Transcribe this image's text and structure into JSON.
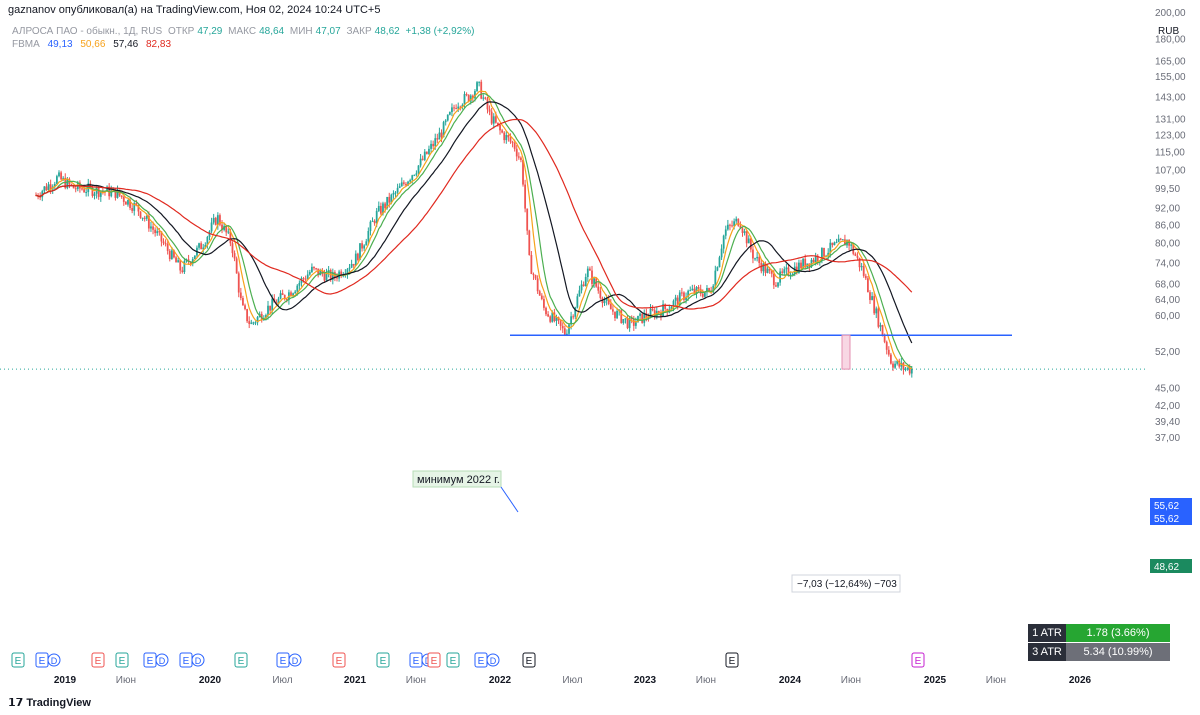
{
  "header": "gaznanov опубликовал(а) на TradingView.com, Ноя 02, 2024 10:24 UTC+5",
  "legend": {
    "symbol": "АЛРОСА ПАО - обыкн., 1Д, RUS",
    "open_label": "ОТКР",
    "open": "47,29",
    "high_label": "МАКС",
    "high": "48,64",
    "low_label": "МИН",
    "low": "47,07",
    "close_label": "ЗАКР",
    "close": "48,62",
    "change": "+1,38 (+2,92%)",
    "ma_label": "FBMA",
    "ma_values": [
      "49,13",
      "50,66",
      "57,46",
      "82,83"
    ]
  },
  "currency": "RUB",
  "footer": "TradingView",
  "colors": {
    "up": "#26a69a",
    "down": "#ef5350",
    "ma1": "#2962ff",
    "ma2": "#f7a21b",
    "ma3": "#131722",
    "ma4": "#e0291f",
    "ma_green": "#4caf50",
    "level": "#2962ff"
  },
  "annotation": {
    "text": "минимум 2022 г.",
    "measure": "−7,03 (−12,64%) −703"
  },
  "price_tags": {
    "level_a": "55,62",
    "level_b": "55,62",
    "last": "48,62"
  },
  "atr": [
    {
      "label": "1 ATR",
      "value": "1.78 (3.66%)",
      "color": "#26a632"
    },
    {
      "label": "3 ATR",
      "value": "5.34 (10.99%)",
      "color": "#6d6f78"
    }
  ],
  "events": [
    "E",
    "DE",
    "E",
    "E",
    "DE",
    "DE",
    "E",
    "DE",
    "E",
    "E",
    "DE",
    "E",
    "E",
    "DE",
    "E",
    "E",
    "E"
  ],
  "chart_data": {
    "type": "line",
    "scale": "log",
    "y_ticks": [
      "200,00",
      "180,00",
      "165,00",
      "155,00",
      "143,00",
      "131,00",
      "123,00",
      "115,00",
      "107,00",
      "99,50",
      "92,00",
      "86,00",
      "80,00",
      "74,00",
      "68,00",
      "64,00",
      "60,00",
      "52,00",
      "45,00",
      "42,00",
      "39,40",
      "37,00"
    ],
    "x_ticks": [
      "2019",
      "Июн",
      "2020",
      "Июл",
      "2021",
      "Июн",
      "2022",
      "Июл",
      "2023",
      "Июн",
      "2024",
      "Июн",
      "2025",
      "Июн",
      "2026"
    ],
    "series": [
      {
        "name": "price",
        "x": [
          2018.8,
          2018.95,
          2019.05,
          2019.2,
          2019.35,
          2019.5,
          2019.65,
          2019.8,
          2019.95,
          2020.05,
          2020.15,
          2020.22,
          2020.28,
          2020.4,
          2020.55,
          2020.7,
          2020.85,
          2021.0,
          2021.15,
          2021.3,
          2021.45,
          2021.6,
          2021.7,
          2021.78,
          2021.85,
          2021.93,
          2022.0,
          2022.1,
          2022.15,
          2022.2,
          2022.3,
          2022.45,
          2022.6,
          2022.75,
          2022.9,
          2023.0,
          2023.15,
          2023.3,
          2023.45,
          2023.55,
          2023.65,
          2023.75,
          2023.9,
          2024.0,
          2024.15,
          2024.3,
          2024.4,
          2024.5,
          2024.6,
          2024.7,
          2024.8
        ],
        "y": [
          97,
          104,
          100,
          99,
          98,
          92,
          82,
          72,
          80,
          89,
          80,
          62,
          58,
          62,
          66,
          72,
          70,
          75,
          90,
          99,
          110,
          125,
          140,
          143,
          150,
          133,
          125,
          118,
          110,
          75,
          62,
          56,
          72,
          62,
          58,
          60,
          62,
          66,
          66,
          84,
          88,
          76,
          69,
          72,
          75,
          79,
          81,
          72,
          60,
          50,
          48.62
        ]
      },
      {
        "name": "FBMA 4",
        "values_at_end": 82.83
      }
    ],
    "levels": [
      55.62
    ],
    "ylim": [
      37,
      200
    ]
  }
}
